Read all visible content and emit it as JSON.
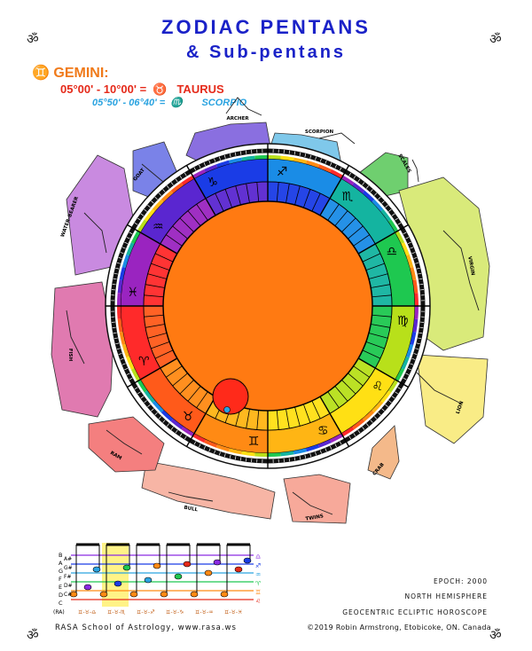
{
  "title_line1": "ZODIAC PENTANS",
  "title_line2": "& Sub-pentans",
  "om_symbol": "ॐ",
  "sign": {
    "glyph": "♊",
    "name": "GEMINI:"
  },
  "pentan": {
    "range": "05°00' - 10°00' =",
    "glyph": "♉",
    "name": "TAURUS"
  },
  "subpentan": {
    "range": "05°50' - 06°40' =",
    "glyph": "♏",
    "name": "SCORPIO"
  },
  "wheel_glyphs": [
    "♈",
    "♉",
    "♊",
    "♋",
    "♌",
    "♍",
    "♎",
    "♏",
    "♐",
    "♑",
    "♒",
    "♓"
  ],
  "constellations": [
    "ARCHER",
    "SCORPION",
    "SCALES",
    "VIRGIN",
    "LION",
    "CRAB",
    "TWINS",
    "BULL",
    "RAM",
    "FISH",
    "WATER-BEARER",
    "GOAT"
  ],
  "colors": {
    "title": "#1a22c8",
    "center": "#ff7a12",
    "pentan": "#e52a1a",
    "subpentan": "#2aa3e0"
  },
  "staff": {
    "notes_left": [
      "B",
      "A",
      "G",
      "F",
      "E",
      "D",
      "C"
    ],
    "notes_left_sub": [
      "",
      "",
      "",
      "",
      "",
      "",
      "(RA)"
    ],
    "notes_right": [
      "A#",
      "G#",
      "F#",
      "D#",
      "C#",
      ""
    ],
    "ra_label": "(RA)",
    "sequence_labels": [
      "♊-♉-♎",
      "♊-♉-♏",
      "♊-♉-♐",
      "♊-♉-♑",
      "♊-♉-♒",
      "♊-♉-♓"
    ]
  },
  "footer": {
    "epoch": "EPOCH: 2000",
    "hemisphere": "NORTH HEMISPHERE",
    "horoscope": "GEOCENTRIC ECLIPTIC HOROSCOPE",
    "school": "RASA School of Astrology, www.rasa.ws",
    "copyright": "©2019 Robin Armstrong, Etobicoke, ON. Canada"
  }
}
